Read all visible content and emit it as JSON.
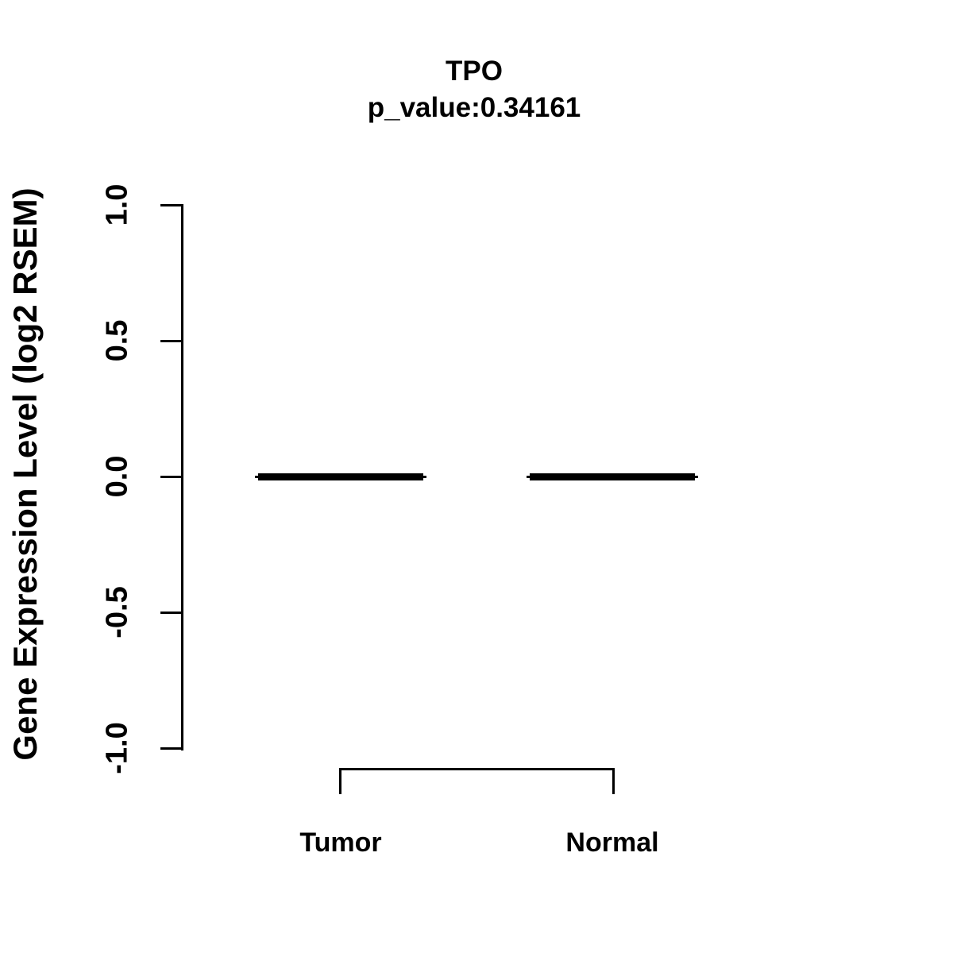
{
  "figure": {
    "background": "#ffffff",
    "ink_color": "#000000"
  },
  "chart_data": {
    "type": "boxplot",
    "title": "TPO",
    "subtitle": "p_value:0.34161",
    "p_value": 0.34161,
    "xlabel": "",
    "ylabel": "Gene Expression Level (log2 RSEM)",
    "categories": [
      "Tumor",
      "Normal"
    ],
    "series": [
      {
        "name": "Tumor",
        "median": 0.0,
        "q1": 0.0,
        "q3": 0.0,
        "whisker_low": 0.0,
        "whisker_high": 0.0,
        "outliers": []
      },
      {
        "name": "Normal",
        "median": 0.0,
        "q1": 0.0,
        "q3": 0.0,
        "whisker_low": 0.0,
        "whisker_high": 0.0,
        "outliers": []
      }
    ],
    "ylim": [
      -1.0,
      1.0
    ],
    "yticks": [
      1.0,
      0.5,
      0.0,
      -0.5,
      -1.0
    ],
    "ytick_labels": [
      "1.0",
      "0.5",
      "0.0",
      "-0.5",
      "-1.0"
    ],
    "grid": false,
    "legend": "none",
    "comparison_bracket": {
      "between": [
        "Tumor",
        "Normal"
      ]
    }
  }
}
